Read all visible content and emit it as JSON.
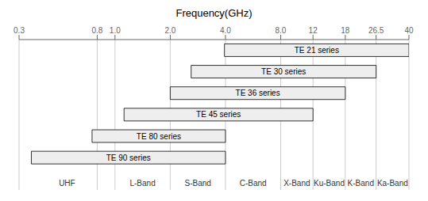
{
  "chart_data": {
    "type": "bar",
    "title": "Frequency(GHz)",
    "orientation": "horizontal",
    "log": "x",
    "grid": true,
    "tick_labels": "x",
    "color": "#eeeeee",
    "categories": [
      "TE 21 series",
      "TE 30 series",
      "TE 36 series",
      "TE 45 series",
      "TE 80 series",
      "TE 90 series"
    ],
    "start": [
      3.95,
      2.6,
      2.0,
      1.12,
      0.75,
      0.35
    ],
    "end": [
      40,
      26.5,
      18,
      12,
      4.0,
      4.0
    ],
    "xlim": [
      0.3,
      40
    ],
    "xticks": [
      0.3,
      0.8,
      {
        "value": 1.0,
        "label": "1.0"
      },
      {
        "value": 2.0,
        "label": "2.0"
      },
      {
        "value": 4.0,
        "label": "4.0"
      },
      {
        "value": 8.0,
        "label": "8.0"
      },
      12,
      18,
      26.5,
      40
    ],
    "bands": [
      {
        "label": "UHF",
        "start": 0.3,
        "end": 1.0
      },
      {
        "label": "L-Band",
        "start": 1.0,
        "end": 2.0
      },
      {
        "label": "S-Band",
        "start": 2.0,
        "end": 4.0
      },
      {
        "label": "C-Band",
        "start": 4.0,
        "end": 8.0
      },
      {
        "label": "X-Band",
        "start": 8.0,
        "end": 12
      },
      {
        "label": "Ku-Band",
        "start": 12,
        "end": 18
      },
      {
        "label": "K-Band",
        "start": 18,
        "end": 26.5
      },
      {
        "label": "Ka-Band",
        "start": 26.5,
        "end": 40
      }
    ]
  }
}
